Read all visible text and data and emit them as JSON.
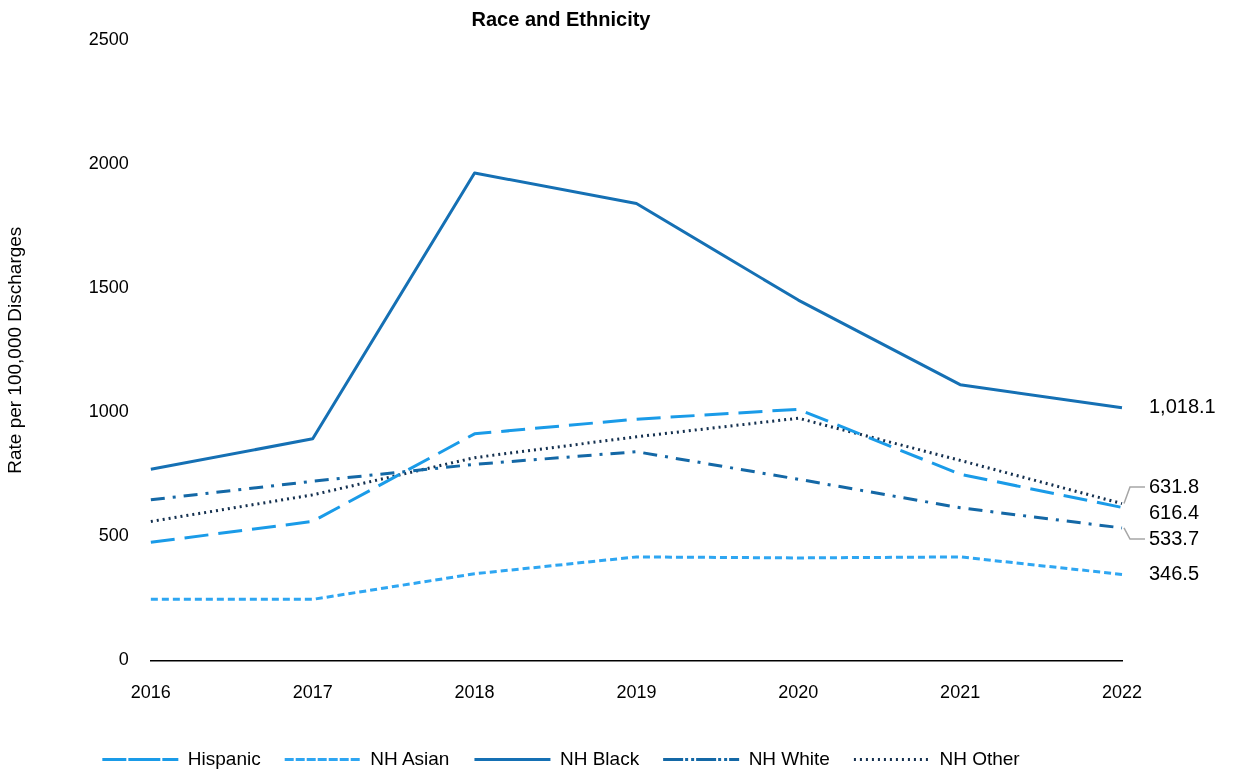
{
  "chart_data": {
    "type": "line",
    "title": "Race and Ethnicity",
    "ylabel": "Rate per 100,000 Discharges",
    "categories": [
      "2016",
      "2017",
      "2018",
      "2019",
      "2020",
      "2021",
      "2022"
    ],
    "series": [
      {
        "name": "Hispanic",
        "color": "#1a9be8",
        "line_style": "longdash",
        "values": [
          476,
          560,
          913,
          972,
          1012,
          750,
          616.4
        ],
        "value_labels": [
          null,
          null,
          null,
          null,
          null,
          null,
          "616.4"
        ]
      },
      {
        "name": "NH Asian",
        "color": "#2ea6f2",
        "line_style": "dashed",
        "values": [
          246,
          246,
          349,
          417,
          413,
          417,
          346.5
        ],
        "value_labels": [
          null,
          null,
          null,
          null,
          null,
          null,
          "346.5"
        ]
      },
      {
        "name": "NH Black",
        "color": "#1570b4",
        "line_style": "solid",
        "values": [
          770,
          893,
          1964,
          1841,
          1452,
          1111,
          1018.1
        ],
        "value_labels": [
          null,
          null,
          null,
          null,
          null,
          null,
          "1,018.1"
        ]
      },
      {
        "name": "NH White",
        "color": "#1468a6",
        "line_style": "dashdot",
        "values": [
          647,
          722,
          790,
          841,
          730,
          615,
          533.7
        ],
        "value_labels": [
          null,
          null,
          null,
          null,
          null,
          null,
          "533.7"
        ]
      },
      {
        "name": "NH Other",
        "color": "#14304f",
        "line_style": "dotted",
        "values": [
          560,
          667,
          817,
          901,
          976,
          806,
          631.8
        ],
        "value_labels": [
          null,
          null,
          null,
          null,
          null,
          null,
          "631.8"
        ]
      }
    ],
    "ylim": [
      0,
      2500
    ],
    "yticks": [
      0,
      500,
      1000,
      1500,
      2000,
      2500
    ],
    "grid": false,
    "legend": "bottom",
    "marker": "none"
  }
}
